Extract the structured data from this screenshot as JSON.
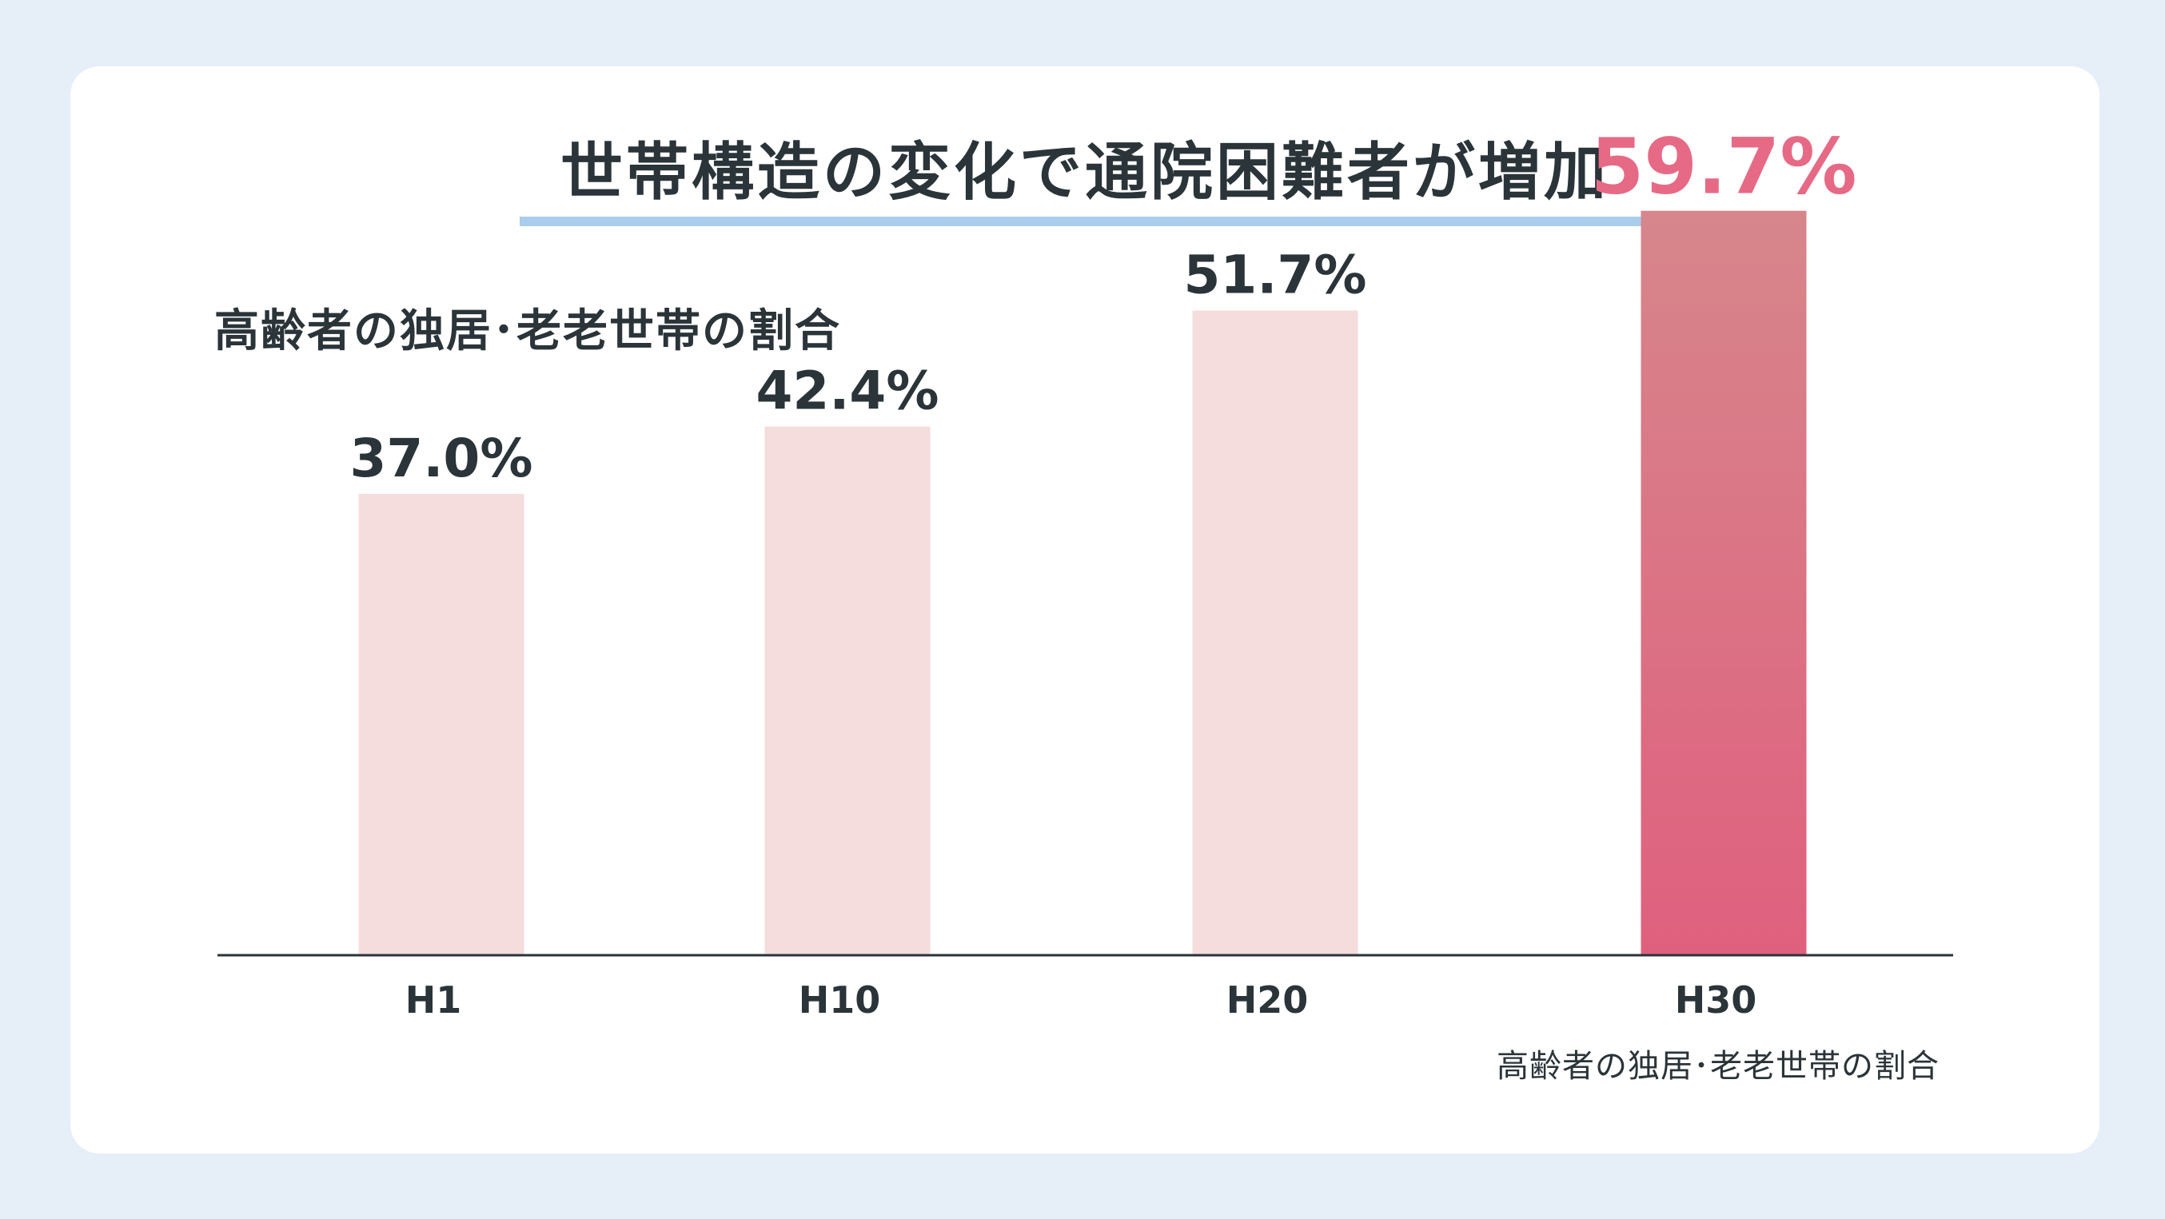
{
  "title": "世帯構造の変化で通院困難者が増加",
  "subtitle": "高齢者の独居･老老世帯の割合",
  "source_note": "高齢者の独居･老老世帯の割合",
  "colors": {
    "background": "#e6eef8",
    "card": "#ffffff",
    "text": "#2a3439",
    "underline": "#a9cdeb",
    "bar_normal": "#f5dcdd",
    "bar_highlight_top": "#d7868c",
    "bar_highlight_bottom": "#df607e",
    "label_highlight": "#e66a85"
  },
  "chart_data": {
    "type": "bar",
    "categories": [
      "H1",
      "H10",
      "H20",
      "H30"
    ],
    "values": [
      37.0,
      42.4,
      51.7,
      59.7
    ],
    "value_labels": [
      "37.0%",
      "42.4%",
      "51.7%",
      "59.7%"
    ],
    "highlight_index": 3,
    "title": "高齢者の独居･老老世帯の割合",
    "xlabel": "",
    "ylabel": "",
    "ylim": [
      0,
      64
    ],
    "grid": false,
    "legend": "none"
  }
}
